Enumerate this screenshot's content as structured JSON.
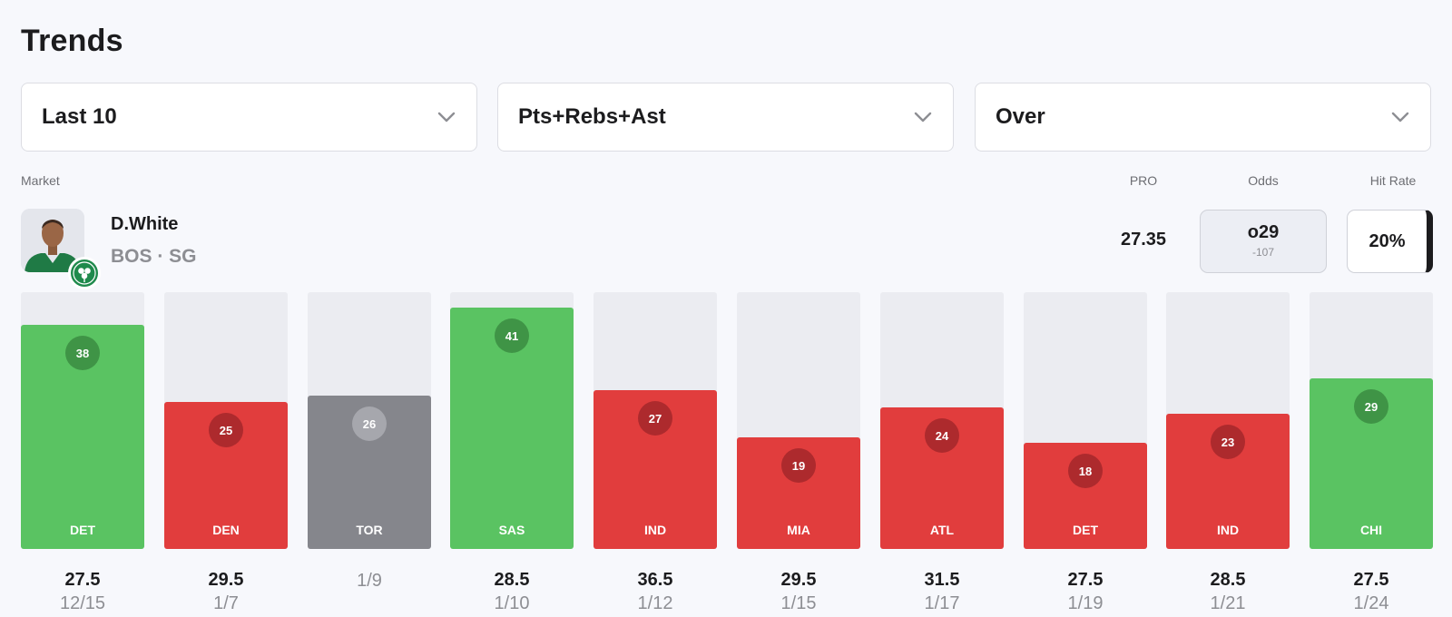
{
  "title": "Trends",
  "filters": [
    {
      "value": "Last 10",
      "icon": "chevron-down-icon"
    },
    {
      "value": "Pts+Rebs+Ast",
      "icon": "chevron-down-icon"
    },
    {
      "value": "Over",
      "icon": "chevron-down-icon"
    }
  ],
  "headers": {
    "market": "Market",
    "pro": "PRO",
    "odds": "Odds",
    "hit_rate": "Hit Rate"
  },
  "player": {
    "name": "D.White",
    "sub": "BOS · SG"
  },
  "pro_value": "27.35",
  "odds": {
    "main": "o29",
    "sub": "-107"
  },
  "hit_rate": "20%",
  "colors": {
    "over": "#5ac362",
    "under": "#e13d3d",
    "push": "#85868c",
    "empty": "#ebecf1"
  },
  "chart_data": {
    "type": "bar",
    "ylim": [
      0,
      43.6
    ],
    "categories": [
      "DET",
      "DEN",
      "TOR",
      "SAS",
      "IND",
      "MIA",
      "ATL",
      "DET",
      "IND",
      "CHI"
    ],
    "values": [
      38,
      25,
      26,
      41,
      27,
      19,
      24,
      18,
      23,
      29
    ],
    "results": [
      "over",
      "under",
      "push",
      "over",
      "under",
      "under",
      "under",
      "under",
      "under",
      "over"
    ],
    "lines": [
      "27.5",
      "29.5",
      "",
      "28.5",
      "36.5",
      "29.5",
      "31.5",
      "27.5",
      "28.5",
      "27.5"
    ],
    "dates": [
      "12/15",
      "1/7",
      "1/9",
      "1/10",
      "1/12",
      "1/15",
      "1/17",
      "1/19",
      "1/21",
      "1/24"
    ]
  }
}
